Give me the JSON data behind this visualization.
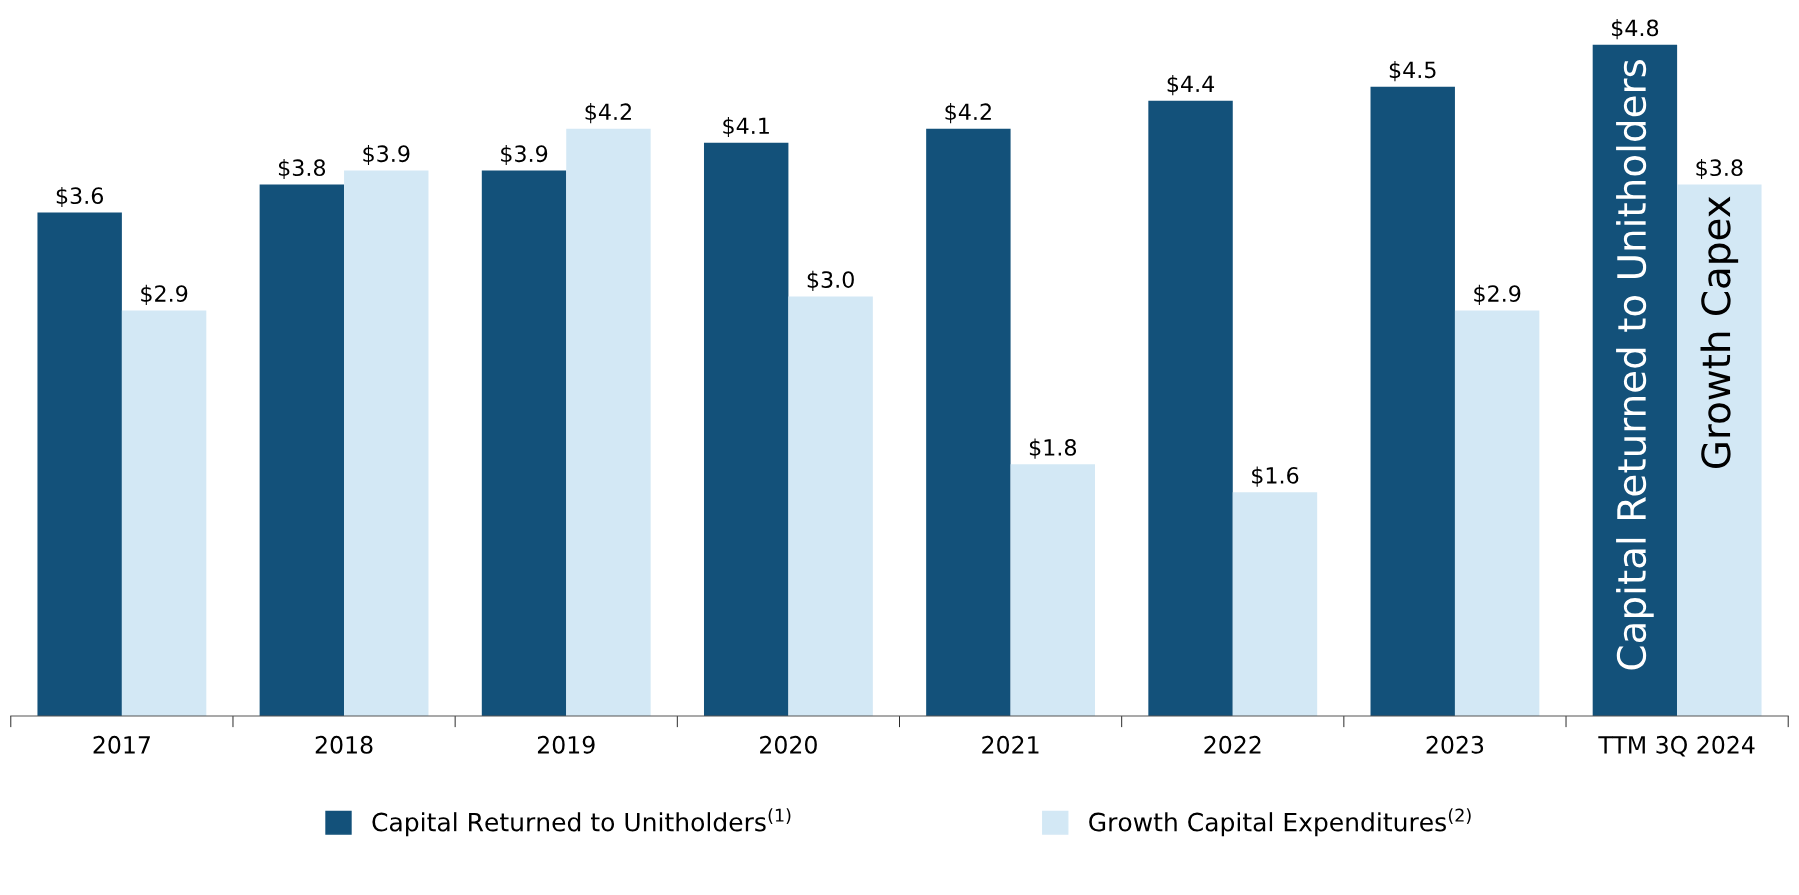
{
  "chart_data": {
    "type": "bar",
    "categories": [
      "2017",
      "2018",
      "2019",
      "2020",
      "2021",
      "2022",
      "2023",
      "TTM 3Q 2024"
    ],
    "series": [
      {
        "name": "Capital Returned to Unitholders$^{(1)}$",
        "color": "#13517a",
        "values": [
          3.6,
          3.8,
          3.9,
          4.1,
          4.2,
          4.4,
          4.5,
          4.8
        ],
        "value_labels": [
          "$3.6",
          "$3.8",
          "$3.9",
          "$4.1",
          "$4.2",
          "$4.4",
          "$4.5",
          "$4.8"
        ]
      },
      {
        "name": "Growth Capital Expenditures$^{(2)}$",
        "color": "#d3e8f5",
        "values": [
          2.9,
          3.9,
          4.2,
          3.0,
          1.8,
          1.6,
          2.9,
          3.8
        ],
        "value_labels": [
          "$2.9",
          "$3.9",
          "$4.2",
          "$3.0",
          "$1.8",
          "$1.6",
          "$2.9",
          "$3.8"
        ]
      }
    ],
    "annotations": [
      {
        "text": "Capital Returned to Unitholders",
        "x": "TTM 3Q 2024",
        "y": 4.8
      },
      {
        "text": "Growth Capex",
        "x": "TTM 3Q 2024",
        "y": 3.8
      }
    ],
    "legend": "bottom",
    "grid": false
  }
}
